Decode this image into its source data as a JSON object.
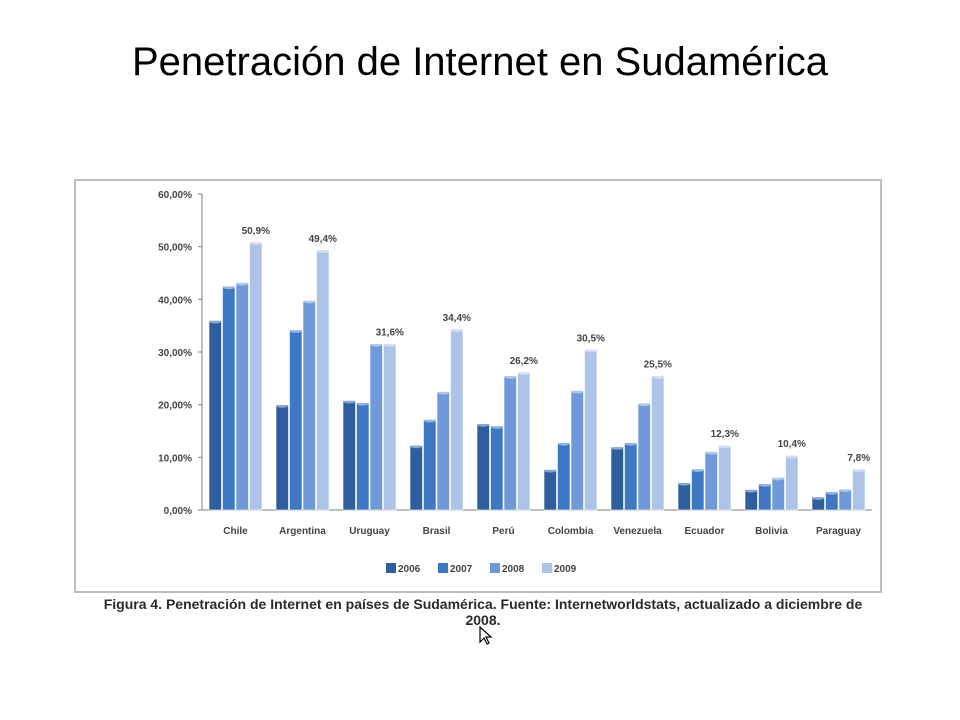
{
  "slide": {
    "title": "Penetración de Internet en Sudamérica",
    "caption": "Figura 4. Penetración de Internet en países de Sudamérica. Fuente: Internetworldstats, actualizado a diciembre de 2008."
  },
  "chart_data": {
    "type": "bar",
    "title": "",
    "xlabel": "",
    "ylabel": "",
    "ylim": [
      0,
      60
    ],
    "yticks": [
      "0,00%",
      "10,00%",
      "20,00%",
      "30,00%",
      "40,00%",
      "50,00%",
      "60,00%"
    ],
    "grid": false,
    "legend_position": "bottom",
    "categories": [
      "Chile",
      "Argentina",
      "Uruguay",
      "Brasil",
      "Perú",
      "Colombia",
      "Venezuela",
      "Ecuador",
      "Bolivia",
      "Paraguay"
    ],
    "series": [
      {
        "name": "2006",
        "color": "#2f5e9e",
        "values": [
          36.0,
          20.0,
          20.8,
          12.3,
          16.4,
          7.7,
          12.0,
          5.2,
          3.9,
          2.5
        ]
      },
      {
        "name": "2007",
        "color": "#3e77c4",
        "values": [
          42.5,
          34.2,
          20.4,
          17.2,
          16.0,
          12.8,
          12.8,
          7.8,
          5.0,
          3.5
        ]
      },
      {
        "name": "2008",
        "color": "#6f99d9",
        "values": [
          43.2,
          39.8,
          31.6,
          22.5,
          25.5,
          22.7,
          20.3,
          11.1,
          6.2,
          4.0
        ]
      },
      {
        "name": "2009",
        "color": "#aec3e8",
        "values": [
          50.9,
          49.4,
          31.6,
          34.4,
          26.2,
          30.5,
          25.5,
          12.3,
          10.4,
          7.8
        ]
      }
    ],
    "data_labels": [
      "50,9%",
      "49,4%",
      "31,6%",
      "34,4%",
      "26,2%",
      "30,5%",
      "25,5%",
      "12,3%",
      "10,4%",
      "7,8%"
    ]
  }
}
